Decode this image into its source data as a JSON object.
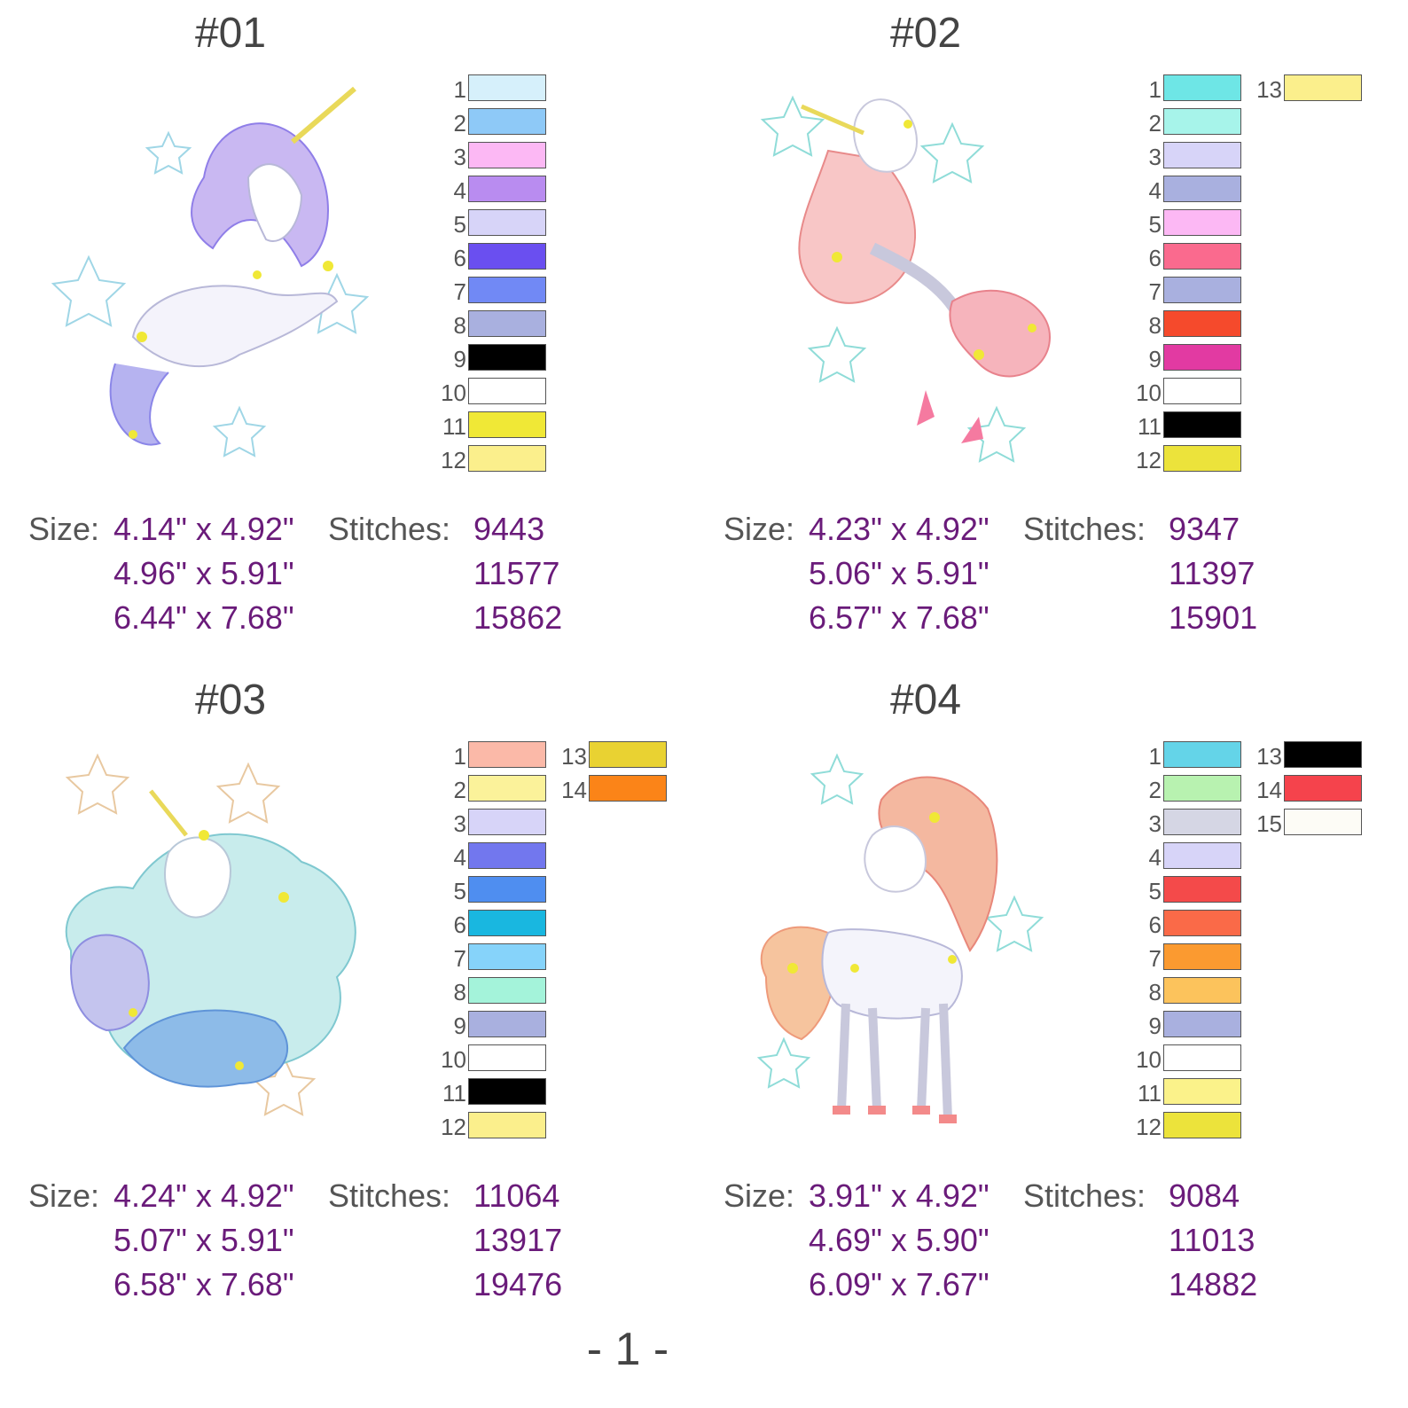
{
  "page_number": "- 1 -",
  "labels": {
    "size": "Size:",
    "stitches": "Stitches:"
  },
  "designs": [
    {
      "title": "#01",
      "sizes": [
        "4.14\" x 4.92\"",
        "4.96\" x 5.91\"",
        "6.44\" x 7.68\""
      ],
      "stitches": [
        "9443",
        "11577",
        "15862"
      ],
      "colors": [
        {
          "n": "1",
          "hex": "#d6f0fb"
        },
        {
          "n": "2",
          "hex": "#8ec9f7"
        },
        {
          "n": "3",
          "hex": "#fcb8f4"
        },
        {
          "n": "4",
          "hex": "#b98cf0"
        },
        {
          "n": "5",
          "hex": "#d7d4f8"
        },
        {
          "n": "6",
          "hex": "#6a4ff0"
        },
        {
          "n": "7",
          "hex": "#7189f5"
        },
        {
          "n": "8",
          "hex": "#a9b0df"
        },
        {
          "n": "9",
          "hex": "#000000"
        },
        {
          "n": "10",
          "hex": "#ffffff"
        },
        {
          "n": "11",
          "hex": "#f0e836"
        },
        {
          "n": "12",
          "hex": "#fbef8c"
        }
      ]
    },
    {
      "title": "#02",
      "sizes": [
        "4.23\" x 4.92\"",
        "5.06\" x 5.91\"",
        "6.57\" x 7.68\""
      ],
      "stitches": [
        "9347",
        "11397",
        "15901"
      ],
      "colors": [
        {
          "n": "1",
          "hex": "#6ee6e6"
        },
        {
          "n": "2",
          "hex": "#a7f4ea"
        },
        {
          "n": "3",
          "hex": "#d7d4f8"
        },
        {
          "n": "4",
          "hex": "#a9b0df"
        },
        {
          "n": "5",
          "hex": "#fcb8f4"
        },
        {
          "n": "6",
          "hex": "#fa6a8e"
        },
        {
          "n": "7",
          "hex": "#a9b0df"
        },
        {
          "n": "8",
          "hex": "#f54a2c"
        },
        {
          "n": "9",
          "hex": "#e23aa2"
        },
        {
          "n": "10",
          "hex": "#ffffff"
        },
        {
          "n": "11",
          "hex": "#000000"
        },
        {
          "n": "12",
          "hex": "#ece33b"
        },
        {
          "n": "13",
          "hex": "#fbef8c"
        }
      ]
    },
    {
      "title": "#03",
      "sizes": [
        "4.24\" x 4.92\"",
        "5.07\" x 5.91\"",
        "6.58\" x 7.68\""
      ],
      "stitches": [
        "11064",
        "13917",
        "19476"
      ],
      "colors": [
        {
          "n": "1",
          "hex": "#fbb9a8"
        },
        {
          "n": "2",
          "hex": "#fbf29a"
        },
        {
          "n": "3",
          "hex": "#d7d4f8"
        },
        {
          "n": "4",
          "hex": "#7277ee"
        },
        {
          "n": "5",
          "hex": "#4f8ef0"
        },
        {
          "n": "6",
          "hex": "#19b7e0"
        },
        {
          "n": "7",
          "hex": "#86d3fa"
        },
        {
          "n": "8",
          "hex": "#a4f3da"
        },
        {
          "n": "9",
          "hex": "#a9b0df"
        },
        {
          "n": "10",
          "hex": "#ffffff"
        },
        {
          "n": "11",
          "hex": "#000000"
        },
        {
          "n": "12",
          "hex": "#fbef8c"
        },
        {
          "n": "13",
          "hex": "#e9d232"
        },
        {
          "n": "14",
          "hex": "#fb8418"
        }
      ]
    },
    {
      "title": "#04",
      "sizes": [
        "3.91\" x 4.92\"",
        "4.69\" x 5.90\"",
        "6.09\" x 7.67\""
      ],
      "stitches": [
        "9084",
        "11013",
        "14882"
      ],
      "colors": [
        {
          "n": "1",
          "hex": "#64d4e8"
        },
        {
          "n": "2",
          "hex": "#b8f2b0"
        },
        {
          "n": "3",
          "hex": "#d5d6e4"
        },
        {
          "n": "4",
          "hex": "#d7d4f8"
        },
        {
          "n": "5",
          "hex": "#f44a4a"
        },
        {
          "n": "6",
          "hex": "#fa6a48"
        },
        {
          "n": "7",
          "hex": "#fb9a30"
        },
        {
          "n": "8",
          "hex": "#fcc35c"
        },
        {
          "n": "9",
          "hex": "#a9b0df"
        },
        {
          "n": "10",
          "hex": "#ffffff"
        },
        {
          "n": "11",
          "hex": "#fbf28a"
        },
        {
          "n": "12",
          "hex": "#ece33b"
        },
        {
          "n": "13",
          "hex": "#000000"
        },
        {
          "n": "14",
          "hex": "#f5434c"
        },
        {
          "n": "15",
          "hex": "#fdfcf6"
        }
      ]
    }
  ]
}
